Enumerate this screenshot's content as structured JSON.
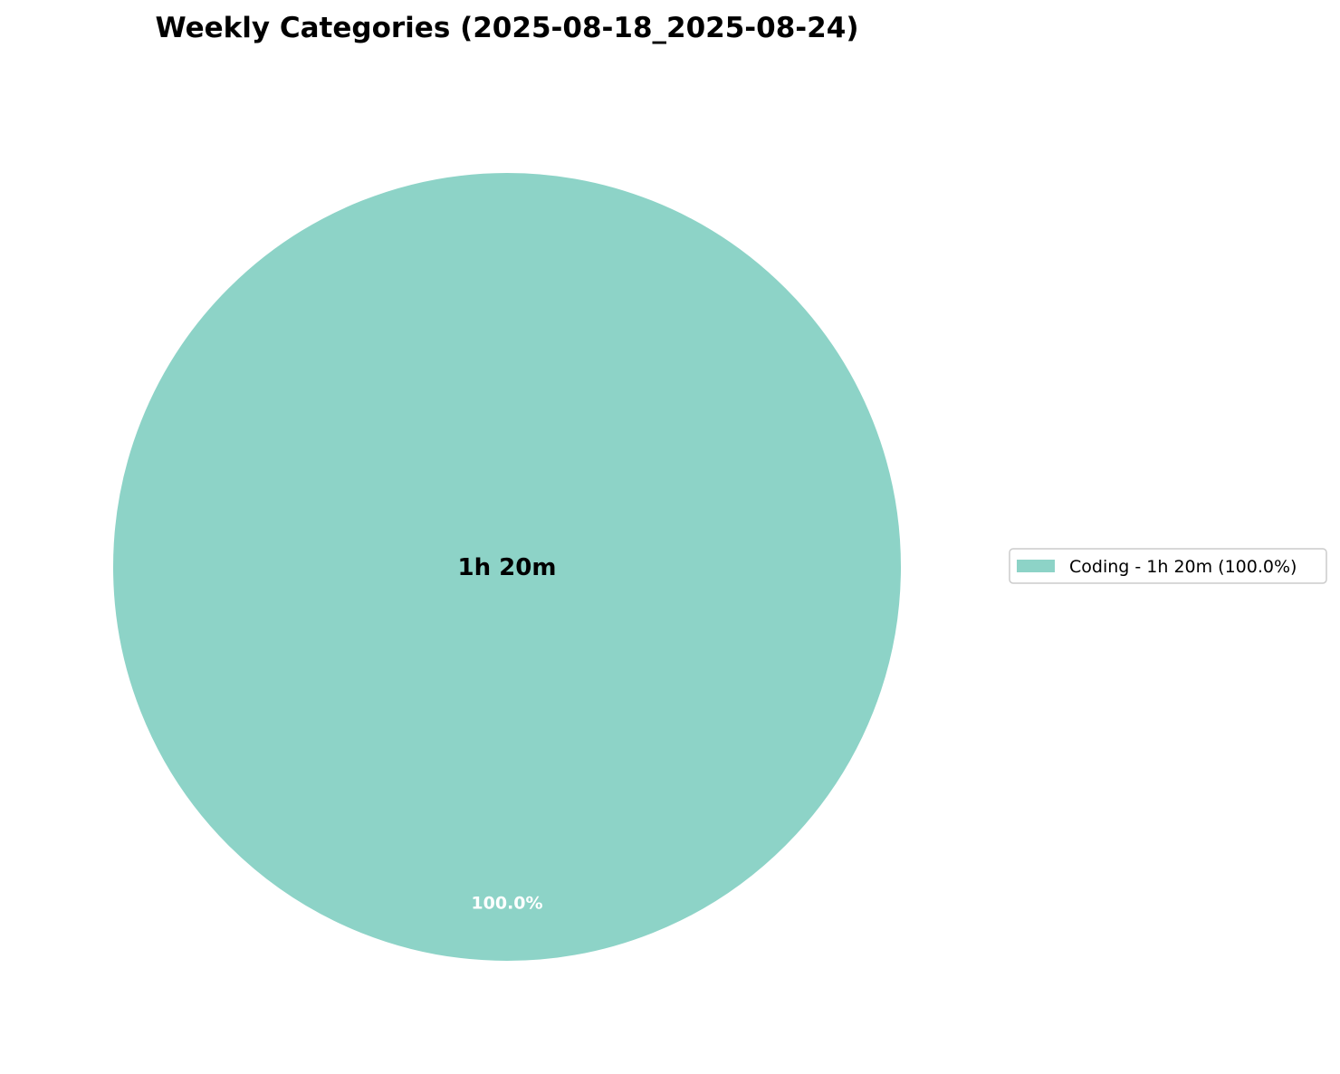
{
  "chart_data": {
    "type": "pie",
    "title": "Weekly Categories (2025-08-18_2025-08-24)",
    "center_label": "1h 20m",
    "slices": [
      {
        "label": "Coding",
        "value_minutes": 80,
        "percent": 100.0,
        "percent_label": "100.0%",
        "legend_label": "Coding - 1h 20m (100.0%)",
        "color": "#8dd3c7"
      }
    ],
    "legend_position": "right"
  }
}
